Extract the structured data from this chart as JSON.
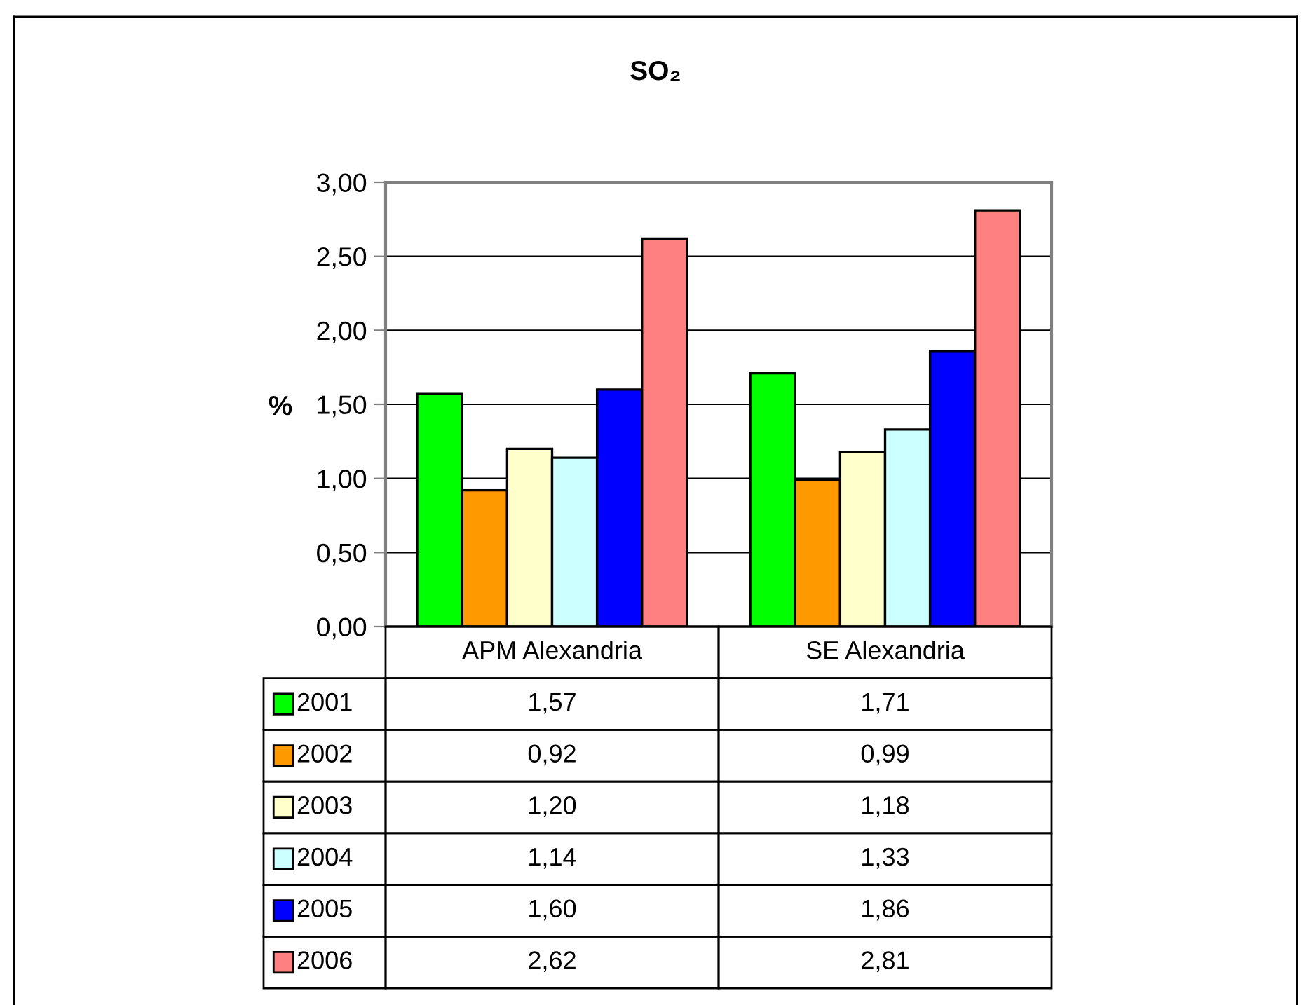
{
  "chart_data": {
    "type": "bar",
    "title": "SO₂",
    "ylabel": "%",
    "categories": [
      "APM Alexandria",
      "SE Alexandria"
    ],
    "series": [
      {
        "name": "2001",
        "color": "#00ff00",
        "values": [
          1.57,
          1.71
        ],
        "value_labels": [
          "1,57",
          "1,71"
        ]
      },
      {
        "name": "2002",
        "color": "#ff9900",
        "values": [
          0.92,
          0.99
        ],
        "value_labels": [
          "0,92",
          "0,99"
        ]
      },
      {
        "name": "2003",
        "color": "#ffffcc",
        "values": [
          1.2,
          1.18
        ],
        "value_labels": [
          "1,20",
          "1,18"
        ]
      },
      {
        "name": "2004",
        "color": "#ccffff",
        "values": [
          1.14,
          1.33
        ],
        "value_labels": [
          "1,14",
          "1,33"
        ]
      },
      {
        "name": "2005",
        "color": "#0000ff",
        "values": [
          1.6,
          1.86
        ],
        "value_labels": [
          "1,60",
          "1,86"
        ]
      },
      {
        "name": "2006",
        "color": "#ff8080",
        "values": [
          2.62,
          2.81
        ],
        "value_labels": [
          "2,62",
          "2,81"
        ]
      }
    ],
    "ylim": [
      0,
      3
    ],
    "yticks": [
      {
        "value": 0,
        "label": "0,00"
      },
      {
        "value": 0.5,
        "label": "0,50"
      },
      {
        "value": 1,
        "label": "1,00"
      },
      {
        "value": 1.5,
        "label": "1,50"
      },
      {
        "value": 2,
        "label": "2,00"
      },
      {
        "value": 2.5,
        "label": "2,50"
      },
      {
        "value": 3,
        "label": "3,00"
      }
    ],
    "grid": "y",
    "legend": "bottom"
  }
}
